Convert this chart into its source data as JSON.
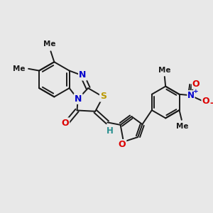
{
  "background_color": "#e8e8e8",
  "bond_color": "#1a1a1a",
  "bond_width": 1.4,
  "fig_width": 3.0,
  "fig_height": 3.0,
  "dpi": 100,
  "xlim": [
    -0.5,
    10.5
  ],
  "ylim": [
    -0.5,
    10.5
  ]
}
